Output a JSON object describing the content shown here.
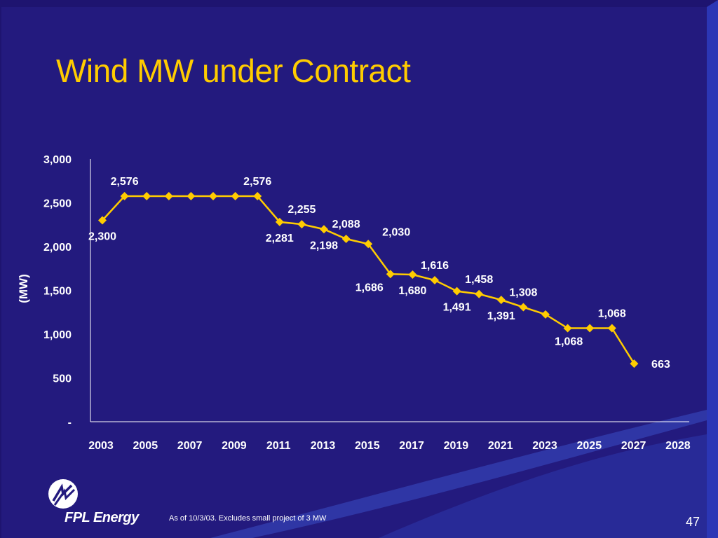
{
  "title": "Wind MW under Contract",
  "footnote": "As of 10/3/03. Excludes small project of 3 MW",
  "page_number": "47",
  "logo": {
    "text": "FPL Energy"
  },
  "colors": {
    "background": "#231a7e",
    "title": "#ffcc00",
    "line": "#ffcc00",
    "text": "#ffffff"
  },
  "chart_data": {
    "type": "line",
    "title": "",
    "xlabel": "",
    "ylabel": "(MW)",
    "ylim": [
      0,
      3000
    ],
    "yticks": [
      {
        "value": 3000,
        "label": "3,000"
      },
      {
        "value": 2500,
        "label": "2,500"
      },
      {
        "value": 2000,
        "label": "2,000"
      },
      {
        "value": 1500,
        "label": "1,500"
      },
      {
        "value": 1000,
        "label": "1,000"
      },
      {
        "value": 500,
        "label": "500"
      },
      {
        "value": 0,
        "label": "-"
      }
    ],
    "x": [
      2003,
      2004,
      2005,
      2006,
      2007,
      2008,
      2009,
      2010,
      2011,
      2012,
      2013,
      2014,
      2015,
      2016,
      2017,
      2018,
      2019,
      2020,
      2021,
      2022,
      2023,
      2024,
      2025,
      2026,
      2027
    ],
    "xtick_labels": [
      "2003",
      "2005",
      "2007",
      "2009",
      "2011",
      "2013",
      "2015",
      "2017",
      "2019",
      "2021",
      "2023",
      "2025",
      "2027",
      "2028"
    ],
    "series": [
      {
        "name": "",
        "values": [
          2300,
          2576,
          2576,
          2576,
          2576,
          2576,
          2576,
          2576,
          2281,
          2255,
          2198,
          2088,
          2030,
          1686,
          1680,
          1616,
          1491,
          1458,
          1391,
          1308,
          1225,
          1068,
          1068,
          1068,
          663
        ]
      }
    ],
    "data_labels": [
      {
        "index": 0,
        "text": "2,300",
        "position": "below"
      },
      {
        "index": 1,
        "text": "2,576",
        "position": "above"
      },
      {
        "index": 7,
        "text": "2,576",
        "position": "above"
      },
      {
        "index": 8,
        "text": "2,281",
        "position": "below"
      },
      {
        "index": 9,
        "text": "2,255",
        "position": "above"
      },
      {
        "index": 10,
        "text": "2,198",
        "position": "below"
      },
      {
        "index": 11,
        "text": "2,088",
        "position": "above"
      },
      {
        "index": 12,
        "text": "2,030",
        "position": "above-right"
      },
      {
        "index": 13,
        "text": "1,686",
        "position": "below-left"
      },
      {
        "index": 14,
        "text": "1,680",
        "position": "below"
      },
      {
        "index": 15,
        "text": "1,616",
        "position": "above"
      },
      {
        "index": 16,
        "text": "1,491",
        "position": "below"
      },
      {
        "index": 17,
        "text": "1,458",
        "position": "above"
      },
      {
        "index": 18,
        "text": "1,391",
        "position": "below"
      },
      {
        "index": 19,
        "text": "1,308",
        "position": "above"
      },
      {
        "index": 22,
        "text": "1,068",
        "position": "below-left"
      },
      {
        "index": 23,
        "text": "1,068",
        "position": "above"
      },
      {
        "index": 24,
        "text": "663",
        "position": "right"
      }
    ],
    "grid": false,
    "legend": "none"
  }
}
